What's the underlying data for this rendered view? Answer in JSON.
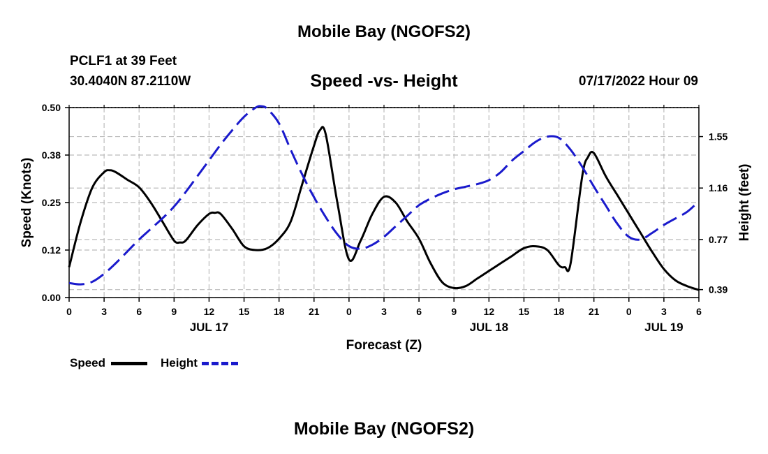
{
  "colors": {
    "speed": "#000000",
    "height": "#1a1acc",
    "grid": "#bbbbbb"
  },
  "header": {
    "title": "Mobile Bay (NGOFS2)",
    "station": "PCLF1 at 39 Feet",
    "coords": "30.4040N  87.2110W",
    "timestamp": "07/17/2022 Hour 09"
  },
  "footer": {
    "title": "Mobile Bay (NGOFS2)"
  },
  "legend": {
    "speed_label": "Speed",
    "height_label": "Height"
  },
  "chart_data": {
    "type": "line",
    "title": "Speed -vs- Height",
    "xlabel": "Forecast (Z)",
    "ylabel": "Speed (Knots)",
    "y2label": "Height (feet)",
    "x_unit": "hours from 00Z Jul 17",
    "xlim": [
      0,
      54
    ],
    "ylim": [
      0,
      0.5
    ],
    "y2lim": [
      0.33,
      1.77
    ],
    "x_tick_values": [
      0,
      3,
      6,
      9,
      12,
      15,
      18,
      21,
      24,
      27,
      30,
      33,
      36,
      39,
      42,
      45,
      48,
      51,
      54
    ],
    "x_tick_labels": [
      "0",
      "3",
      "6",
      "9",
      "12",
      "15",
      "18",
      "21",
      "0",
      "3",
      "6",
      "9",
      "12",
      "15",
      "18",
      "21",
      "0",
      "3",
      "6"
    ],
    "y_ticks": [
      0.0,
      0.125,
      0.25,
      0.375,
      0.5
    ],
    "y_tick_labels": [
      "0.00",
      "0.12",
      "0.25",
      "0.38",
      "0.50"
    ],
    "y2_ticks": [
      0.39,
      0.77,
      1.16,
      1.55
    ],
    "y2_tick_labels": [
      "0.39",
      "0.77",
      "1.16",
      "1.55"
    ],
    "date_labels": [
      {
        "x": 12,
        "label": "JUL 17"
      },
      {
        "x": 36,
        "label": "JUL 18"
      },
      {
        "x": 51,
        "label": "JUL 19"
      }
    ],
    "series": [
      {
        "name": "Speed",
        "axis": "left",
        "style": "solid",
        "x": [
          0,
          1,
          2,
          3,
          3.5,
          4,
          5,
          6,
          7,
          8,
          9,
          9.5,
          10,
          11,
          12,
          12.5,
          13,
          14,
          15,
          16,
          17,
          18,
          19,
          20,
          21,
          21.5,
          22,
          23,
          24,
          25,
          26,
          27,
          28,
          29,
          30,
          31,
          32,
          33,
          34,
          35,
          36,
          37,
          38,
          39,
          40,
          41,
          42,
          42.5,
          43,
          44,
          44.5,
          45,
          46,
          47,
          48,
          49,
          50,
          51,
          52,
          53,
          54
        ],
        "values": [
          0.08,
          0.2,
          0.29,
          0.33,
          0.335,
          0.33,
          0.31,
          0.29,
          0.25,
          0.2,
          0.15,
          0.145,
          0.15,
          0.19,
          0.22,
          0.223,
          0.22,
          0.18,
          0.135,
          0.125,
          0.13,
          0.155,
          0.2,
          0.3,
          0.4,
          0.44,
          0.43,
          0.25,
          0.1,
          0.15,
          0.22,
          0.265,
          0.25,
          0.2,
          0.155,
          0.09,
          0.04,
          0.025,
          0.03,
          0.05,
          0.07,
          0.09,
          0.11,
          0.13,
          0.135,
          0.125,
          0.085,
          0.08,
          0.09,
          0.32,
          0.37,
          0.38,
          0.32,
          0.27,
          0.22,
          0.17,
          0.12,
          0.075,
          0.045,
          0.03,
          0.02
        ]
      },
      {
        "name": "Height",
        "axis": "right",
        "style": "dashed",
        "x": [
          0,
          1,
          2,
          3,
          4,
          5,
          6,
          7,
          8,
          9,
          10,
          11,
          12,
          13,
          14,
          15,
          16,
          16.5,
          17,
          18,
          19,
          20,
          21,
          22,
          23,
          24,
          25,
          26,
          27,
          28,
          29,
          30,
          31,
          32,
          33,
          34,
          35,
          36,
          37,
          38,
          39,
          40,
          41,
          42,
          43,
          44,
          45,
          46,
          47,
          48,
          49,
          50,
          51,
          52,
          53,
          54
        ],
        "values": [
          0.44,
          0.43,
          0.45,
          0.51,
          0.59,
          0.68,
          0.77,
          0.85,
          0.93,
          1.02,
          1.13,
          1.25,
          1.37,
          1.49,
          1.6,
          1.7,
          1.77,
          1.78,
          1.76,
          1.65,
          1.45,
          1.26,
          1.09,
          0.94,
          0.81,
          0.72,
          0.7,
          0.73,
          0.79,
          0.87,
          0.95,
          1.03,
          1.08,
          1.12,
          1.15,
          1.17,
          1.19,
          1.22,
          1.28,
          1.37,
          1.44,
          1.51,
          1.55,
          1.54,
          1.45,
          1.32,
          1.17,
          1.03,
          0.89,
          0.79,
          0.77,
          0.82,
          0.88,
          0.93,
          0.98,
          1.06
        ]
      }
    ]
  }
}
